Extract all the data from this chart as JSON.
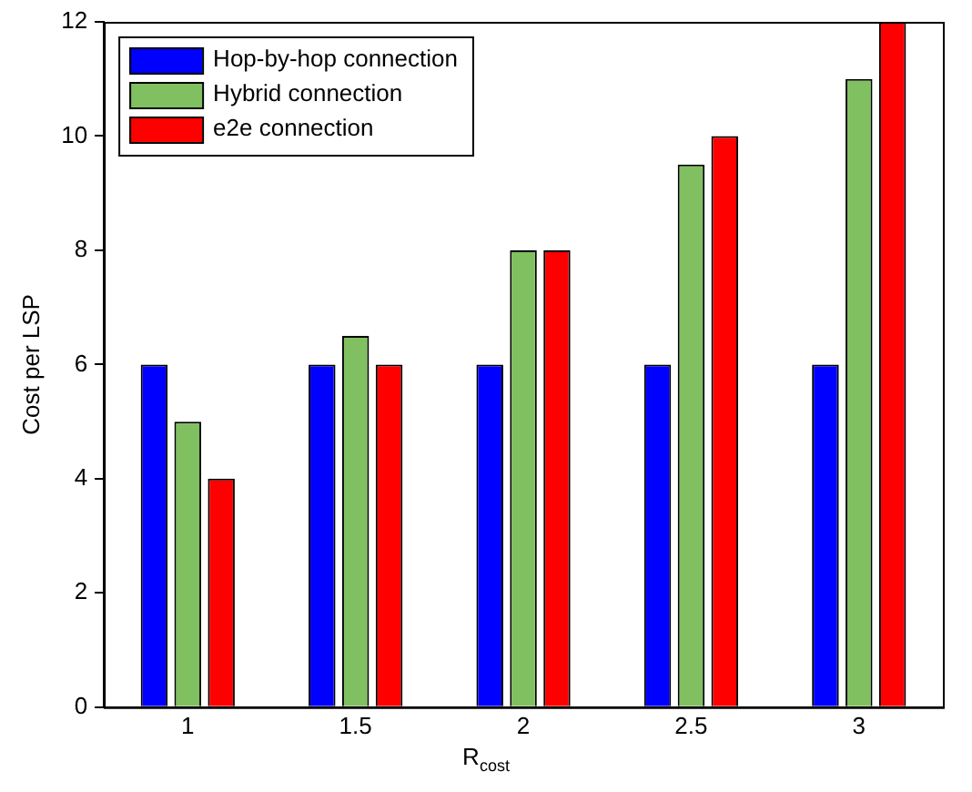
{
  "chart_data": {
    "type": "bar",
    "xlabel": "R$_{cost}$",
    "ylabel": "Cost per LSP",
    "categories": [
      "1",
      "1.5",
      "2",
      "2.5",
      "3"
    ],
    "series": [
      {
        "name": "Hop-by-hop connection",
        "color": "#0000ff",
        "values": [
          6,
          6,
          6,
          6,
          6
        ]
      },
      {
        "name": "Hybrid connection",
        "color": "#80c060",
        "values": [
          5,
          6.5,
          8,
          9.5,
          11
        ]
      },
      {
        "name": "e2e connection",
        "color": "#ff0000",
        "values": [
          4,
          6,
          8,
          10,
          12
        ]
      }
    ],
    "ylim": [
      0,
      12
    ],
    "yticks": [
      0,
      2,
      4,
      6,
      8,
      10,
      12
    ],
    "grid": false,
    "legend": "top left"
  }
}
